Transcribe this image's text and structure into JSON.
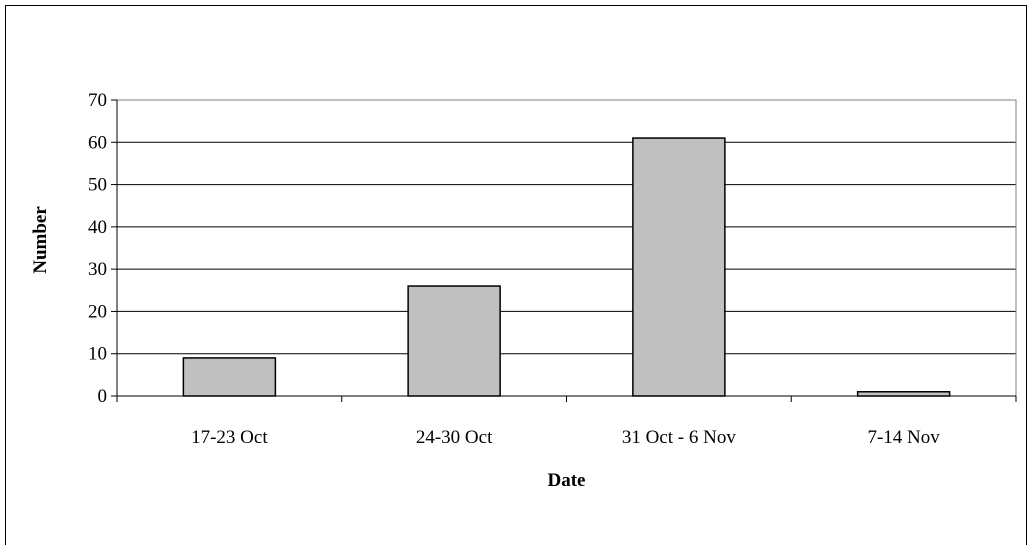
{
  "chart_data": {
    "type": "bar",
    "title": "",
    "xlabel": "Date",
    "ylabel": "Number",
    "categories": [
      "17-23 Oct",
      "24-30 Oct",
      "31 Oct - 6 Nov",
      "7-14 Nov"
    ],
    "values": [
      9,
      26,
      61,
      1
    ],
    "ylim": [
      0,
      70
    ],
    "yticks": [
      0,
      10,
      20,
      30,
      40,
      50,
      60,
      70
    ],
    "grid": true,
    "legend": "none",
    "colors": {
      "bar_fill": "#c0c0c0",
      "bar_stroke": "#000000",
      "gridline": "#000000",
      "plot_border": "#808080"
    }
  }
}
